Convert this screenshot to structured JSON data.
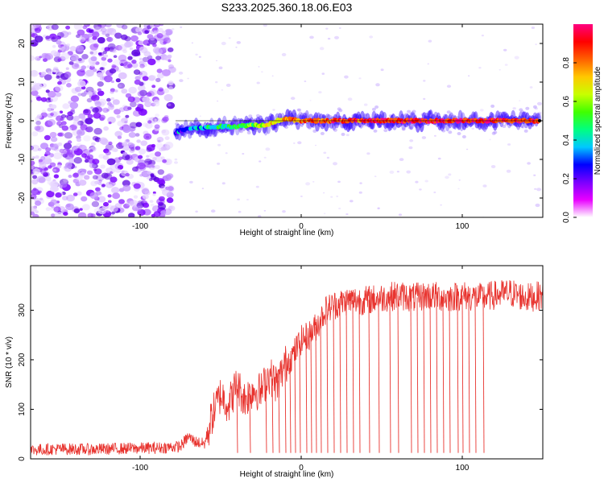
{
  "title": "S233.2025.360.18.06.E03",
  "colors": {
    "snr_line": "#e8342f",
    "ridge": "#e0303a",
    "axis": "#000000"
  },
  "chart_data": [
    {
      "type": "heatmap",
      "name": "spectrogram",
      "xlabel": "Height of straight line (km)",
      "ylabel": "Frequency (Hz)",
      "xlim": [
        -168,
        150
      ],
      "ylim": [
        -25,
        25
      ],
      "xticks": [
        -100,
        0,
        100
      ],
      "yticks": [
        -20,
        -10,
        0,
        10,
        20
      ],
      "noise_region_x": [
        -168,
        -80
      ],
      "ridge_start_x": -80,
      "ridge": {
        "x": [
          -78,
          -70,
          -60,
          -50,
          -40,
          -30,
          -25,
          -20,
          -15,
          -10,
          -5,
          0,
          10,
          20,
          40,
          60,
          80,
          100,
          120,
          148
        ],
        "freq": [
          -3.0,
          -2.0,
          -1.8,
          -1.5,
          -1.5,
          -1.0,
          -1.2,
          -0.8,
          0.0,
          0.5,
          0.2,
          0.0,
          0.0,
          0.0,
          0.0,
          0.0,
          0.0,
          0.0,
          0.0,
          0.0
        ],
        "amplitude": [
          0.3,
          0.35,
          0.4,
          0.45,
          0.5,
          0.55,
          0.6,
          0.65,
          0.7,
          0.75,
          0.78,
          0.8,
          0.85,
          0.88,
          0.9,
          0.9,
          0.9,
          0.9,
          0.9,
          0.9
        ]
      },
      "colorbar": {
        "label": "Normalized spectral amplitude",
        "range": [
          0,
          1
        ],
        "ticks": [
          "0.0",
          "0.2",
          "0.4",
          "0.6",
          "0.8"
        ],
        "colormap": [
          "#ffffff",
          "#e800ff",
          "#7a00ff",
          "#0000ff",
          "#00c8ff",
          "#00ff80",
          "#40ff00",
          "#c8ff00",
          "#ffc800",
          "#ff6000",
          "#ff0000",
          "#ff0080"
        ]
      }
    },
    {
      "type": "line",
      "name": "snr",
      "xlabel": "Height of straight line (km)",
      "ylabel": "SNR (10 * v/v)",
      "xlim": [
        -168,
        150
      ],
      "ylim": [
        0,
        390
      ],
      "xticks": [
        -100,
        0,
        100
      ],
      "yticks": [
        0,
        100,
        200,
        300
      ],
      "series": [
        {
          "name": "SNR",
          "x": [
            -168,
            -150,
            -130,
            -110,
            -90,
            -75,
            -70,
            -66,
            -60,
            -55,
            -50,
            -45,
            -40,
            -35,
            -30,
            -25,
            -20,
            -15,
            -10,
            -5,
            0,
            5,
            10,
            15,
            20,
            30,
            40,
            50,
            60,
            70,
            80,
            90,
            100,
            110,
            120,
            130,
            140,
            150
          ],
          "y": [
            18,
            20,
            19,
            21,
            22,
            25,
            45,
            35,
            30,
            90,
            130,
            110,
            150,
            120,
            140,
            135,
            170,
            150,
            190,
            210,
            240,
            250,
            270,
            300,
            310,
            320,
            320,
            325,
            330,
            325,
            330,
            325,
            330,
            325,
            330,
            335,
            325,
            330
          ]
        }
      ],
      "dropouts_x": [
        -40,
        -32,
        -22,
        -18,
        -14,
        -10,
        -7,
        -4,
        -1,
        3,
        6,
        9,
        12,
        16,
        20,
        24,
        28,
        32,
        36,
        42,
        48,
        55,
        60,
        68,
        72,
        76,
        80,
        84,
        88,
        92,
        97,
        100,
        104,
        108,
        113
      ],
      "dropout_y": 12
    }
  ]
}
